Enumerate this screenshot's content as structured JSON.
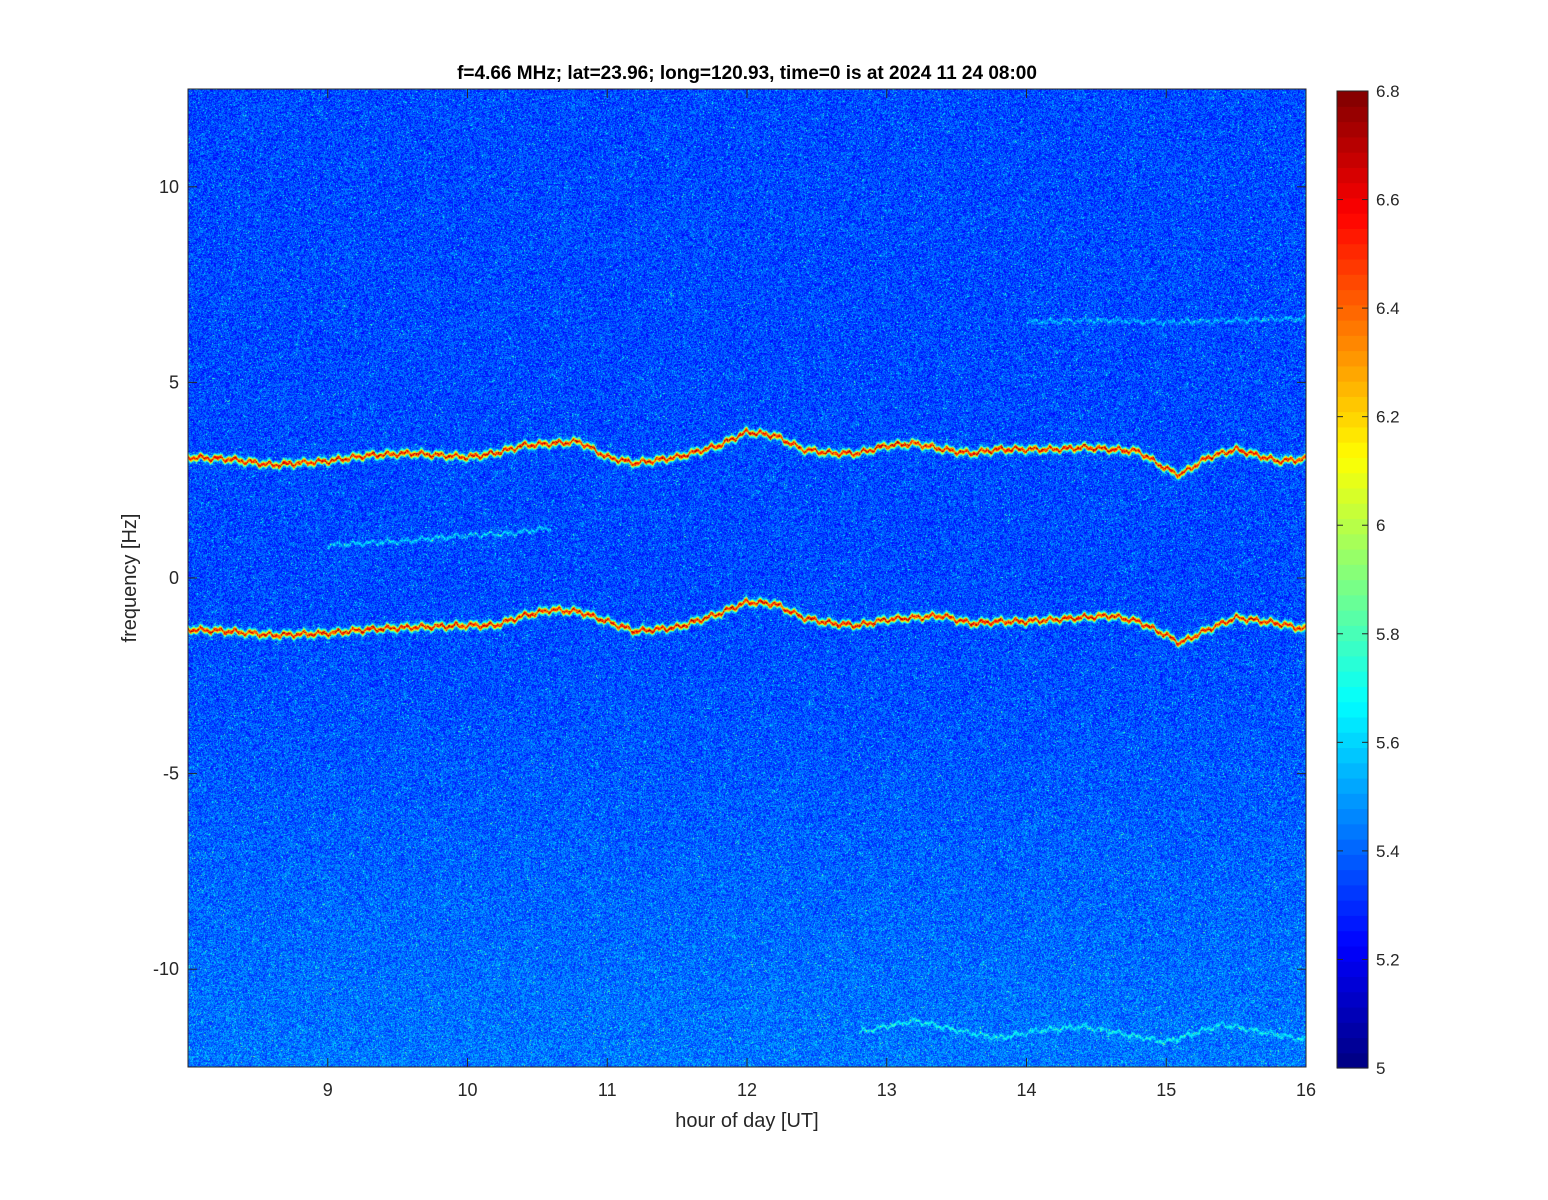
{
  "chart_data": {
    "type": "heatmap",
    "title": "f=4.66 MHz;  lat=23.96; long=120.93, time=0 is at 2024 11 24 08:00",
    "xlabel": "hour of day [UT]",
    "ylabel": "frequency [Hz]",
    "xlim": [
      8,
      16
    ],
    "ylim": [
      -12.5,
      12.5
    ],
    "xticks": [
      9,
      10,
      11,
      12,
      13,
      14,
      15,
      16
    ],
    "xtick_labels": [
      "9",
      "10",
      "11",
      "12",
      "13",
      "14",
      "15",
      "16"
    ],
    "yticks": [
      -10,
      -5,
      0,
      5,
      10
    ],
    "ytick_labels": [
      "-10",
      "-5",
      "0",
      "5",
      "10"
    ],
    "colorbar": {
      "colormap": "jet",
      "clim": [
        5,
        6.8
      ],
      "ticks": [
        5,
        5.2,
        5.4,
        5.6,
        5.8,
        6,
        6.2,
        6.4,
        6.6,
        6.8
      ],
      "tick_labels": [
        "5",
        "5.2",
        "5.4",
        "5.6",
        "5.8",
        "6",
        "6.2",
        "6.4",
        "6.6",
        "6.8"
      ]
    },
    "background_level": 5.35,
    "traces": [
      {
        "hours": [
          8.0,
          8.3,
          8.6,
          9.0,
          9.3,
          9.6,
          10.0,
          10.2,
          10.4,
          10.6,
          10.8,
          11.0,
          11.2,
          11.5,
          11.8,
          12.0,
          12.2,
          12.4,
          12.6,
          12.8,
          13.0,
          13.2,
          13.4,
          13.6,
          13.8,
          14.0,
          14.2,
          14.4,
          14.6,
          14.8,
          15.0,
          15.1,
          15.3,
          15.5,
          15.8,
          16.0
        ],
        "frequencies": [
          3.1,
          3.05,
          2.9,
          3.0,
          3.15,
          3.2,
          3.1,
          3.2,
          3.4,
          3.45,
          3.5,
          3.1,
          2.95,
          3.1,
          3.4,
          3.75,
          3.65,
          3.3,
          3.2,
          3.2,
          3.4,
          3.45,
          3.3,
          3.2,
          3.3,
          3.3,
          3.3,
          3.35,
          3.3,
          3.25,
          2.8,
          2.65,
          3.1,
          3.3,
          3.0,
          3.05
        ],
        "peak_level": 6.75
      },
      {
        "hours": [
          8.0,
          8.3,
          8.6,
          9.0,
          9.3,
          9.6,
          10.0,
          10.2,
          10.4,
          10.6,
          10.8,
          11.0,
          11.2,
          11.5,
          11.8,
          12.0,
          12.2,
          12.4,
          12.6,
          12.8,
          13.0,
          13.2,
          13.4,
          13.6,
          13.8,
          14.0,
          14.2,
          14.4,
          14.6,
          14.8,
          15.0,
          15.1,
          15.3,
          15.5,
          15.8,
          16.0
        ],
        "frequencies": [
          -1.3,
          -1.35,
          -1.45,
          -1.4,
          -1.3,
          -1.25,
          -1.2,
          -1.2,
          -0.95,
          -0.8,
          -0.85,
          -1.1,
          -1.35,
          -1.25,
          -0.9,
          -0.6,
          -0.65,
          -1.0,
          -1.15,
          -1.2,
          -1.05,
          -1.0,
          -0.95,
          -1.15,
          -1.1,
          -1.1,
          -1.05,
          -1.0,
          -0.95,
          -1.1,
          -1.45,
          -1.65,
          -1.3,
          -1.0,
          -1.15,
          -1.3
        ],
        "peak_level": 6.75
      },
      {
        "hours": [
          9.0,
          9.5,
          10.0,
          10.3,
          10.6
        ],
        "frequencies": [
          0.85,
          0.95,
          1.1,
          1.15,
          1.3
        ],
        "peak_level": 5.75
      },
      {
        "hours": [
          14.0,
          14.5,
          15.0,
          15.5,
          16.0
        ],
        "frequencies": [
          6.55,
          6.6,
          6.55,
          6.6,
          6.65
        ],
        "peak_level": 5.65
      },
      {
        "hours": [
          12.8,
          13.2,
          13.5,
          13.8,
          14.1,
          14.4,
          14.7,
          15.0,
          15.4,
          15.7,
          16.0
        ],
        "frequencies": [
          -11.6,
          -11.3,
          -11.55,
          -11.75,
          -11.55,
          -11.45,
          -11.65,
          -11.85,
          -11.4,
          -11.6,
          -11.8
        ],
        "peak_level": 5.75
      }
    ]
  }
}
